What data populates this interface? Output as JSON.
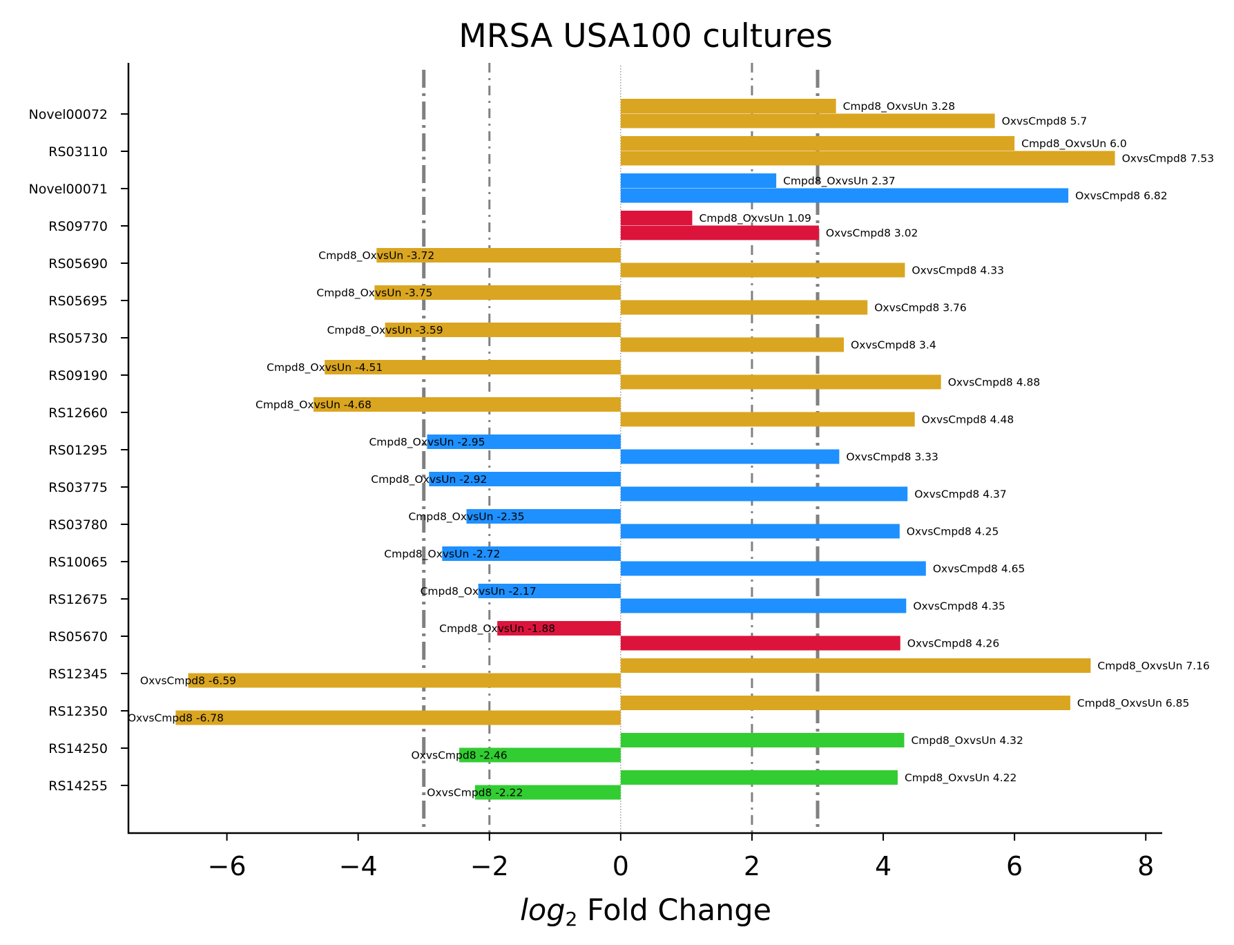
{
  "chart_data": {
    "type": "bar",
    "orientation": "horizontal",
    "title": "MRSA USA100 cultures",
    "xlabel_italic": "log",
    "xlabel_sub": "2",
    "xlabel_rest": " Fold Change",
    "xlim": [
      -7.5,
      8.25
    ],
    "x_ticks": [
      -6,
      -4,
      -2,
      0,
      2,
      4,
      6,
      8
    ],
    "x_tick_labels": [
      "−6",
      "−4",
      "−2",
      "0",
      "2",
      "4",
      "6",
      "8"
    ],
    "grid": false,
    "reference_lines": [
      {
        "x": -3,
        "style": "dashdot-thick"
      },
      {
        "x": -2,
        "style": "dashdot"
      },
      {
        "x": 0,
        "style": "dotted"
      },
      {
        "x": 2,
        "style": "dashdot"
      },
      {
        "x": 3,
        "style": "dashdot-thick"
      }
    ],
    "colors": {
      "gold": "#DAA520",
      "blue": "#1E90FF",
      "red": "#DC143C",
      "green": "#32CD32",
      "refline": "#808080"
    },
    "rows": [
      {
        "gene": "Novel00072",
        "color": "gold",
        "bars": [
          {
            "value": 3.28,
            "label": "Cmpd8_OxvsUn 3.28"
          },
          {
            "value": 5.7,
            "label": "OxvsCmpd8 5.7"
          }
        ]
      },
      {
        "gene": "RS03110",
        "color": "gold",
        "bars": [
          {
            "value": 6.0,
            "label": "Cmpd8_OxvsUn 6.0"
          },
          {
            "value": 7.53,
            "label": "OxvsCmpd8 7.53"
          }
        ]
      },
      {
        "gene": "Novel00071",
        "color": "blue",
        "bars": [
          {
            "value": 2.37,
            "label": "Cmpd8_OxvsUn 2.37"
          },
          {
            "value": 6.82,
            "label": "OxvsCmpd8 6.82"
          }
        ]
      },
      {
        "gene": "RS09770",
        "color": "red",
        "bars": [
          {
            "value": 1.09,
            "label": "Cmpd8_OxvsUn 1.09"
          },
          {
            "value": 3.02,
            "label": "OxvsCmpd8 3.02"
          }
        ]
      },
      {
        "gene": "RS05690",
        "color": "gold",
        "bars": [
          {
            "value": -3.72,
            "label": "Cmpd8_OxvsUn -3.72"
          },
          {
            "value": 4.33,
            "label": "OxvsCmpd8 4.33"
          }
        ]
      },
      {
        "gene": "RS05695",
        "color": "gold",
        "bars": [
          {
            "value": -3.75,
            "label": "Cmpd8_OxvsUn -3.75"
          },
          {
            "value": 3.76,
            "label": "OxvsCmpd8 3.76"
          }
        ]
      },
      {
        "gene": "RS05730",
        "color": "gold",
        "bars": [
          {
            "value": -3.59,
            "label": "Cmpd8_OxvsUn -3.59"
          },
          {
            "value": 3.4,
            "label": "OxvsCmpd8 3.4"
          }
        ]
      },
      {
        "gene": "RS09190",
        "color": "gold",
        "bars": [
          {
            "value": -4.51,
            "label": "Cmpd8_OxvsUn -4.51"
          },
          {
            "value": 4.88,
            "label": "OxvsCmpd8 4.88"
          }
        ]
      },
      {
        "gene": "RS12660",
        "color": "gold",
        "bars": [
          {
            "value": -4.68,
            "label": "Cmpd8_OxvsUn -4.68"
          },
          {
            "value": 4.48,
            "label": "OxvsCmpd8 4.48"
          }
        ]
      },
      {
        "gene": "RS01295",
        "color": "blue",
        "bars": [
          {
            "value": -2.95,
            "label": "Cmpd8_OxvsUn -2.95"
          },
          {
            "value": 3.33,
            "label": "OxvsCmpd8 3.33"
          }
        ]
      },
      {
        "gene": "RS03775",
        "color": "blue",
        "bars": [
          {
            "value": -2.92,
            "label": "Cmpd8_OxvsUn -2.92"
          },
          {
            "value": 4.37,
            "label": "OxvsCmpd8 4.37"
          }
        ]
      },
      {
        "gene": "RS03780",
        "color": "blue",
        "bars": [
          {
            "value": -2.35,
            "label": "Cmpd8_OxvsUn -2.35"
          },
          {
            "value": 4.25,
            "label": "OxvsCmpd8 4.25"
          }
        ]
      },
      {
        "gene": "RS10065",
        "color": "blue",
        "bars": [
          {
            "value": -2.72,
            "label": "Cmpd8_OxvsUn -2.72"
          },
          {
            "value": 4.65,
            "label": "OxvsCmpd8 4.65"
          }
        ]
      },
      {
        "gene": "RS12675",
        "color": "blue",
        "bars": [
          {
            "value": -2.17,
            "label": "Cmpd8_OxvsUn -2.17"
          },
          {
            "value": 4.35,
            "label": "OxvsCmpd8 4.35"
          }
        ]
      },
      {
        "gene": "RS05670",
        "color": "red",
        "bars": [
          {
            "value": -1.88,
            "label": "Cmpd8_OxvsUn -1.88"
          },
          {
            "value": 4.26,
            "label": "OxvsCmpd8 4.26"
          }
        ]
      },
      {
        "gene": "RS12345",
        "color": "gold",
        "bars": [
          {
            "value": 7.16,
            "label": "Cmpd8_OxvsUn 7.16"
          },
          {
            "value": -6.59,
            "label": "OxvsCmpd8 -6.59"
          }
        ]
      },
      {
        "gene": "RS12350",
        "color": "gold",
        "bars": [
          {
            "value": 6.85,
            "label": "Cmpd8_OxvsUn 6.85"
          },
          {
            "value": -6.78,
            "label": "OxvsCmpd8 -6.78"
          }
        ]
      },
      {
        "gene": "RS14250",
        "color": "green",
        "bars": [
          {
            "value": 4.32,
            "label": "Cmpd8_OxvsUn 4.32"
          },
          {
            "value": -2.46,
            "label": "OxvsCmpd8 -2.46"
          }
        ]
      },
      {
        "gene": "RS14255",
        "color": "green",
        "bars": [
          {
            "value": 4.22,
            "label": "Cmpd8_OxvsUn 4.22"
          },
          {
            "value": -2.22,
            "label": "OxvsCmpd8 -2.22"
          }
        ]
      }
    ]
  }
}
